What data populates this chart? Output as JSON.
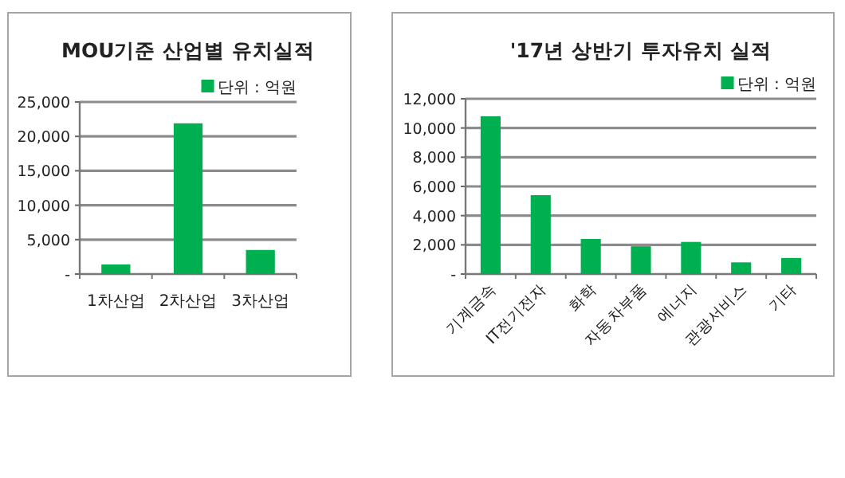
{
  "chart_data": [
    {
      "type": "bar",
      "title": "MOU기준 산업별 유치실적",
      "categories": [
        "1차산업",
        "2차산업",
        "3차산업"
      ],
      "series": [
        {
          "name": "단위 : 억원",
          "color": "#00b050",
          "values": [
            1400,
            21900,
            3500
          ]
        }
      ],
      "ylim": [
        0,
        25000
      ],
      "yticks": [
        {
          "value": 0,
          "label": "-"
        },
        {
          "value": 5000,
          "label": "5,000"
        },
        {
          "value": 10000,
          "label": "10,000"
        },
        {
          "value": 15000,
          "label": "15,000"
        },
        {
          "value": 20000,
          "label": "20,000"
        },
        {
          "value": 25000,
          "label": "25,000"
        }
      ],
      "grid": "y",
      "legend": "top right"
    },
    {
      "type": "bar",
      "title": "'17년 상반기 투자유치 실적",
      "categories": [
        "기계금속",
        "IT전기전자",
        "화학",
        "자동차부품",
        "에너지",
        "관광서비스",
        "기타"
      ],
      "series": [
        {
          "name": "단위 : 억원",
          "color": "#00b050",
          "values": [
            10800,
            5400,
            2400,
            1900,
            2200,
            800,
            1100
          ]
        }
      ],
      "ylim": [
        0,
        12000
      ],
      "yticks": [
        {
          "value": 0,
          "label": "-"
        },
        {
          "value": 2000,
          "label": "2,000"
        },
        {
          "value": 4000,
          "label": "4,000"
        },
        {
          "value": 6000,
          "label": "6,000"
        },
        {
          "value": 8000,
          "label": "8,000"
        },
        {
          "value": 10000,
          "label": "10,000"
        },
        {
          "value": 12000,
          "label": "12,000"
        }
      ],
      "grid": "y",
      "legend": "top right"
    }
  ]
}
